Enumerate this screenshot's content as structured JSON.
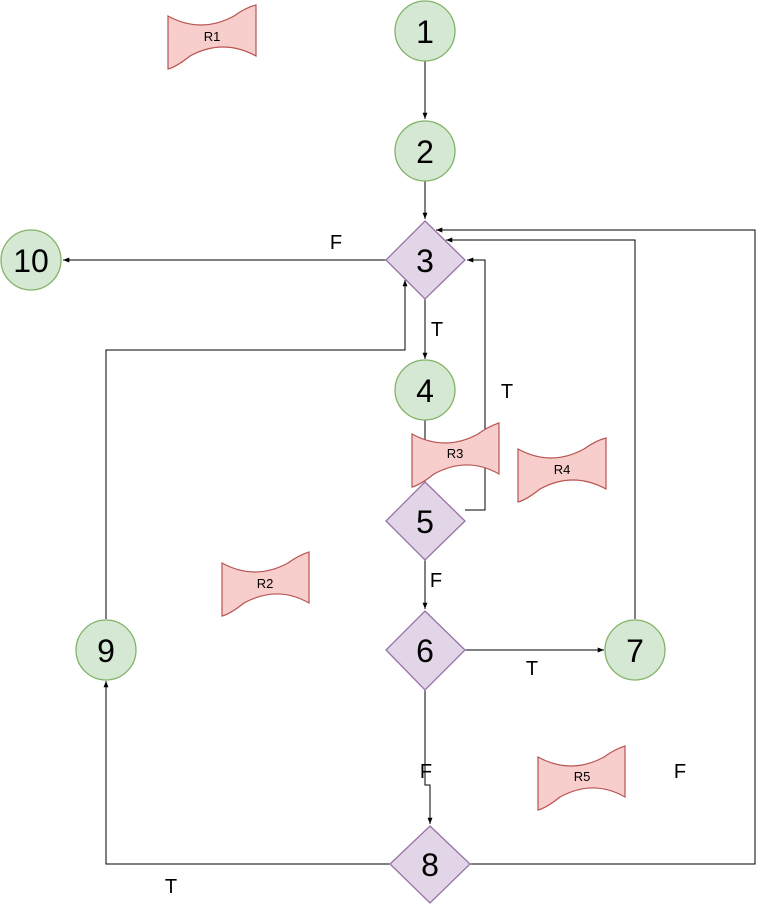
{
  "nodes": [
    {
      "id": "1",
      "label": "1",
      "shape": "circle"
    },
    {
      "id": "2",
      "label": "2",
      "shape": "circle"
    },
    {
      "id": "3",
      "label": "3",
      "shape": "diamond"
    },
    {
      "id": "4",
      "label": "4",
      "shape": "circle"
    },
    {
      "id": "5",
      "label": "5",
      "shape": "diamond"
    },
    {
      "id": "6",
      "label": "6",
      "shape": "diamond"
    },
    {
      "id": "7",
      "label": "7",
      "shape": "circle"
    },
    {
      "id": "8",
      "label": "8",
      "shape": "diamond"
    },
    {
      "id": "9",
      "label": "9",
      "shape": "circle"
    },
    {
      "id": "10",
      "label": "10",
      "shape": "circle"
    }
  ],
  "edges": [
    {
      "from": "1",
      "to": "2",
      "label": ""
    },
    {
      "from": "2",
      "to": "3",
      "label": ""
    },
    {
      "from": "3",
      "to": "10",
      "label": "F"
    },
    {
      "from": "3",
      "to": "4",
      "label": "T"
    },
    {
      "from": "4",
      "to": "5",
      "label": ""
    },
    {
      "from": "5",
      "to": "3",
      "label": "T"
    },
    {
      "from": "5",
      "to": "6",
      "label": "F"
    },
    {
      "from": "6",
      "to": "7",
      "label": "T"
    },
    {
      "from": "7",
      "to": "3",
      "label": ""
    },
    {
      "from": "6",
      "to": "8",
      "label": "F"
    },
    {
      "from": "8",
      "to": "9",
      "label": "T"
    },
    {
      "from": "9",
      "to": "3",
      "label": ""
    },
    {
      "from": "8",
      "to": "3",
      "label": "F"
    }
  ],
  "regions": [
    {
      "id": "R1",
      "label": "R1"
    },
    {
      "id": "R2",
      "label": "R2"
    },
    {
      "id": "R3",
      "label": "R3"
    },
    {
      "id": "R4",
      "label": "R4"
    },
    {
      "id": "R5",
      "label": "R5"
    }
  ],
  "colors": {
    "circle_fill": "#d5e8d4",
    "circle_stroke": "#82b366",
    "diamond_fill": "#e1d5e7",
    "diamond_stroke": "#9673a6",
    "region_fill": "#f8cecc",
    "region_stroke": "#b85450"
  }
}
